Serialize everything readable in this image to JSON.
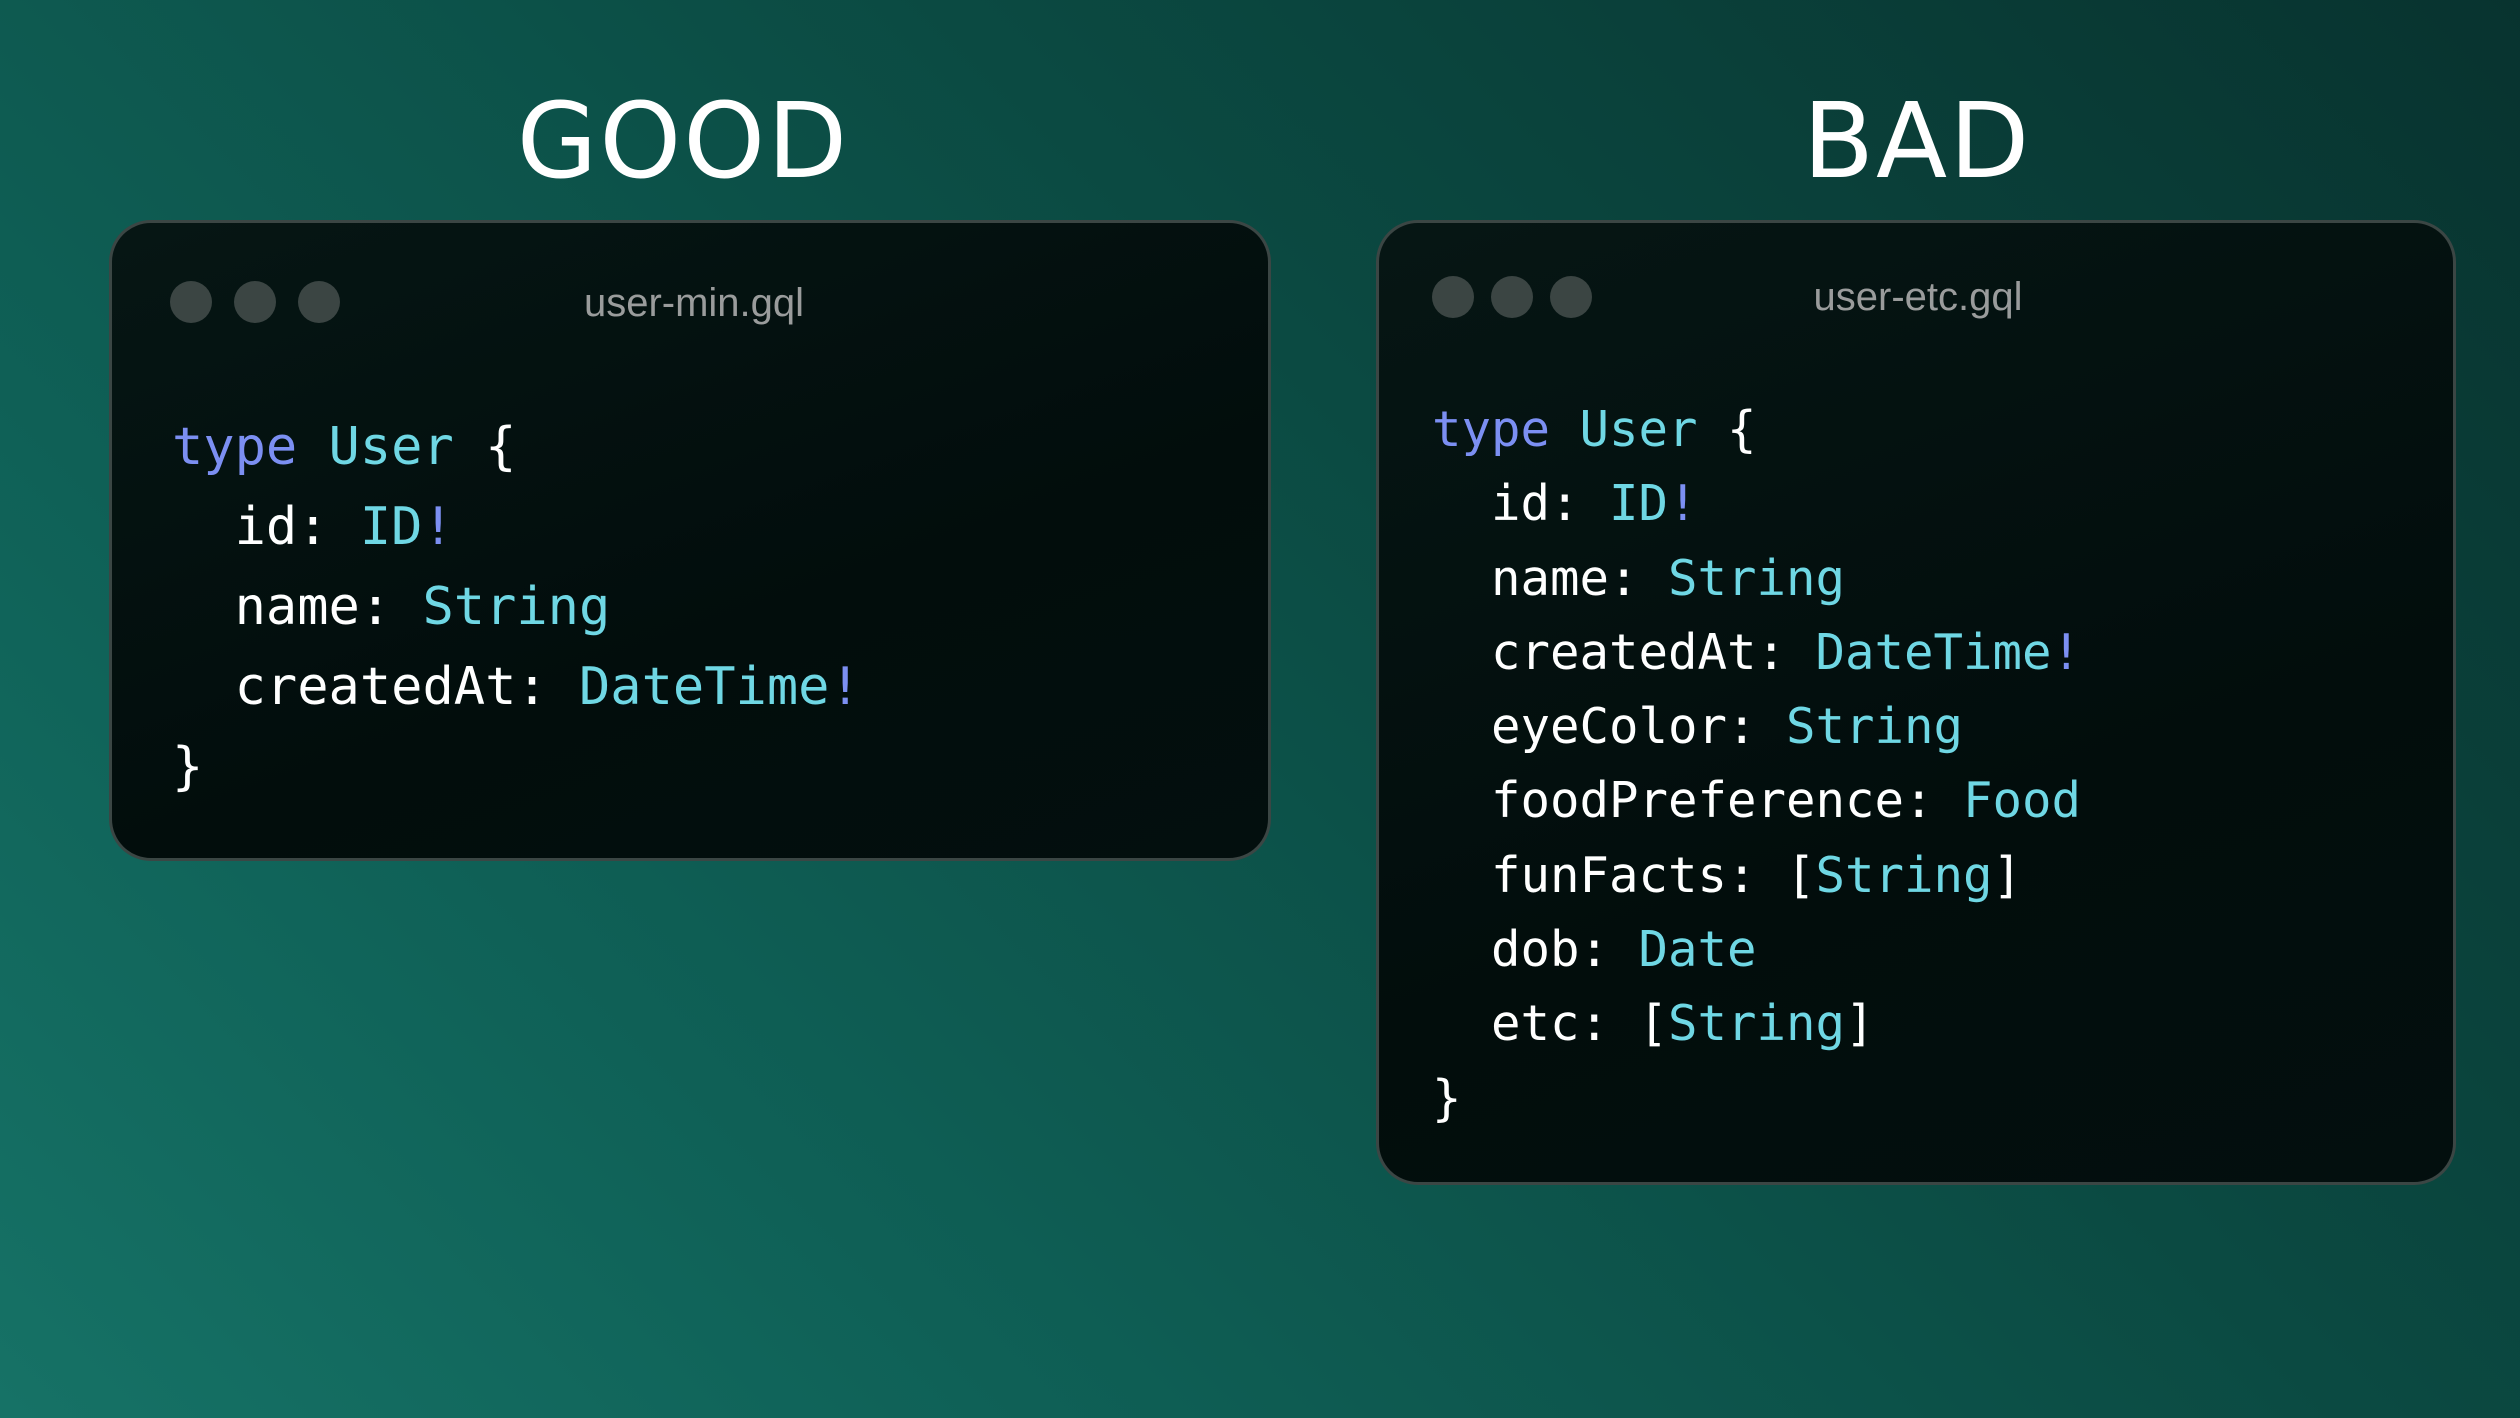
{
  "colors": {
    "keyword": "#7c8ff2",
    "type": "#6fd7e4",
    "plain": "#ffffff",
    "background": "#0b4a42",
    "window": "#020d0c"
  },
  "good": {
    "heading": "GOOD",
    "filename": "user-min.gql",
    "window_buttons": [
      "window-dot",
      "window-dot",
      "window-dot"
    ],
    "lines": [
      [
        [
          "type",
          "kw"
        ],
        [
          " ",
          "pl"
        ],
        [
          "User",
          "ty"
        ],
        [
          " {",
          "pl"
        ]
      ],
      [
        [
          "  id: ",
          "pl"
        ],
        [
          "ID",
          "ty"
        ],
        [
          "!",
          "kw"
        ]
      ],
      [
        [
          "  name: ",
          "pl"
        ],
        [
          "String",
          "ty"
        ]
      ],
      [
        [
          "  createdAt: ",
          "pl"
        ],
        [
          "DateTime",
          "ty"
        ],
        [
          "!",
          "kw"
        ]
      ],
      [
        [
          "}",
          "pl"
        ]
      ]
    ]
  },
  "bad": {
    "heading": "BAD",
    "filename": "user-etc.gql",
    "window_buttons": [
      "window-dot",
      "window-dot",
      "window-dot"
    ],
    "lines": [
      [
        [
          "type",
          "kw"
        ],
        [
          " ",
          "pl"
        ],
        [
          "User",
          "ty"
        ],
        [
          " {",
          "pl"
        ]
      ],
      [
        [
          "  id: ",
          "pl"
        ],
        [
          "ID",
          "ty"
        ],
        [
          "!",
          "kw"
        ]
      ],
      [
        [
          "  name: ",
          "pl"
        ],
        [
          "String",
          "ty"
        ]
      ],
      [
        [
          "  createdAt: ",
          "pl"
        ],
        [
          "DateTime",
          "ty"
        ],
        [
          "!",
          "kw"
        ]
      ],
      [
        [
          "  eyeColor: ",
          "pl"
        ],
        [
          "String",
          "ty"
        ]
      ],
      [
        [
          "  foodPreference: ",
          "pl"
        ],
        [
          "Food",
          "ty"
        ]
      ],
      [
        [
          "  funFacts: [",
          "pl"
        ],
        [
          "String",
          "ty"
        ],
        [
          "]",
          "pl"
        ]
      ],
      [
        [
          "  dob: ",
          "pl"
        ],
        [
          "Date",
          "ty"
        ]
      ],
      [
        [
          "  etc: [",
          "pl"
        ],
        [
          "String",
          "ty"
        ],
        [
          "]",
          "pl"
        ]
      ],
      [
        [
          "}",
          "pl"
        ]
      ]
    ]
  }
}
